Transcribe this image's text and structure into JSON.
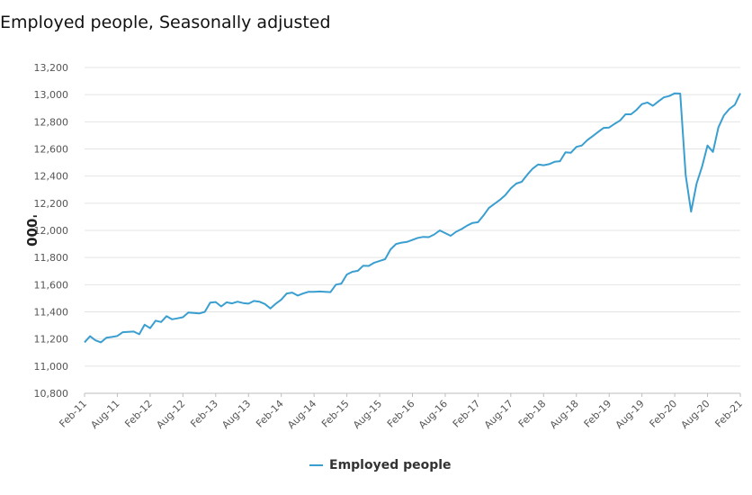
{
  "colors": {
    "line": "#3a9fd0",
    "grid": "#e4e4e4",
    "axis": "#bdbdbd"
  },
  "chart_data": {
    "type": "line",
    "title": "Employed people, Seasonally adjusted",
    "ylabel": "'000",
    "xlabel": "",
    "ylim": [
      10800,
      13200
    ],
    "yticks": [
      10800,
      11000,
      11200,
      11400,
      11600,
      11800,
      12000,
      12200,
      12400,
      12600,
      12800,
      13000,
      13200
    ],
    "ytick_labels": [
      "10,800",
      "11,000",
      "11,200",
      "11,400",
      "11,600",
      "11,800",
      "12,000",
      "12,200",
      "12,400",
      "12,600",
      "12,800",
      "13,000",
      "13,200"
    ],
    "xtick_labels": [
      "Feb-11",
      "Aug-11",
      "Feb-12",
      "Aug-12",
      "Feb-13",
      "Aug-13",
      "Feb-14",
      "Aug-14",
      "Feb-15",
      "Aug-15",
      "Feb-16",
      "Aug-16",
      "Feb-17",
      "Aug-17",
      "Feb-18",
      "Aug-18",
      "Feb-19",
      "Aug-19",
      "Feb-20",
      "Aug-20",
      "Feb-21"
    ],
    "grid": true,
    "legend": "bottom-center",
    "x_start": "Feb-11",
    "frequency": "monthly",
    "series": [
      {
        "name": "Employed people",
        "values": [
          11175,
          11220,
          11190,
          11175,
          11210,
          11215,
          11222,
          11250,
          11253,
          11255,
          11235,
          11305,
          11280,
          11335,
          11325,
          11368,
          11345,
          11352,
          11360,
          11395,
          11392,
          11388,
          11400,
          11468,
          11472,
          11440,
          11470,
          11462,
          11475,
          11465,
          11460,
          11480,
          11475,
          11458,
          11425,
          11460,
          11490,
          11535,
          11542,
          11520,
          11535,
          11548,
          11548,
          11550,
          11548,
          11545,
          11600,
          11608,
          11675,
          11695,
          11702,
          11740,
          11738,
          11762,
          11775,
          11788,
          11860,
          11900,
          11910,
          11915,
          11930,
          11945,
          11952,
          11950,
          11970,
          12000,
          11980,
          11960,
          11990,
          12010,
          12035,
          12055,
          12060,
          12110,
          12165,
          12195,
          12225,
          12260,
          12310,
          12345,
          12358,
          12410,
          12455,
          12485,
          12480,
          12488,
          12505,
          12510,
          12575,
          12572,
          12615,
          12625,
          12665,
          12695,
          12725,
          12755,
          12758,
          12785,
          12810,
          12855,
          12855,
          12888,
          12930,
          12942,
          12918,
          12950,
          12980,
          12990,
          13010,
          13008,
          12405,
          12138,
          12345,
          12470,
          12625,
          12578,
          12760,
          12848,
          12895,
          12925,
          13010
        ]
      }
    ]
  }
}
